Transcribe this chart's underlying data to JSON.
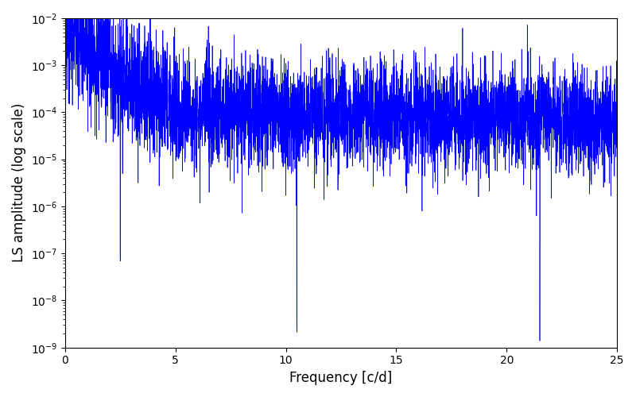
{
  "xlabel": "Frequency [c/d]",
  "ylabel": "LS amplitude (log scale)",
  "xlim": [
    0,
    25
  ],
  "ylim_low": 1e-09,
  "ylim_high": 0.01,
  "line_color": "#0000ff",
  "line_width": 0.5,
  "figsize": [
    8.0,
    5.0
  ],
  "dpi": 100,
  "seed": 12345,
  "n_points": 5000,
  "freq_max": 25.0
}
